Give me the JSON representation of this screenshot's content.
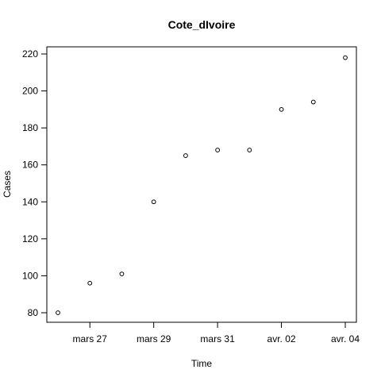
{
  "chart_data": {
    "type": "scatter",
    "title": "Cote_dIvoire",
    "xlabel": "Time",
    "ylabel": "Cases",
    "x": [
      "2020-03-26",
      "2020-03-27",
      "2020-03-28",
      "2020-03-29",
      "2020-03-30",
      "2020-03-31",
      "2020-04-01",
      "2020-04-02",
      "2020-04-03",
      "2020-04-04"
    ],
    "y": [
      80,
      96,
      101,
      140,
      165,
      168,
      168,
      190,
      194,
      218
    ],
    "xlim": [
      "2020-03-26",
      "2020-04-04"
    ],
    "ylim": [
      80,
      220
    ],
    "x_ticks": [
      {
        "date": "2020-03-27",
        "label": "mars 27"
      },
      {
        "date": "2020-03-29",
        "label": "mars 29"
      },
      {
        "date": "2020-03-31",
        "label": "mars 31"
      },
      {
        "date": "2020-04-02",
        "label": "avr. 02"
      },
      {
        "date": "2020-04-04",
        "label": "avr. 04"
      }
    ],
    "y_ticks": [
      80,
      100,
      120,
      140,
      160,
      180,
      200,
      220
    ],
    "grid": false,
    "marker": "open-circle"
  }
}
